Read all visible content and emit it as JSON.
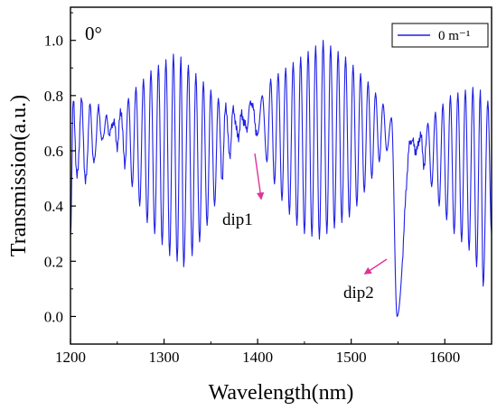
{
  "chart_data": {
    "type": "line",
    "title": "",
    "panel_label": "0°",
    "xlabel": "Wavelength(nm)",
    "ylabel": "Transmission(a.u.)",
    "xlim": [
      1200,
      1650
    ],
    "ylim": [
      -0.1,
      1.12
    ],
    "xticks": [
      1200,
      1300,
      1400,
      1500,
      1600
    ],
    "yticks": [
      0.0,
      0.2,
      0.4,
      0.6,
      0.8,
      1.0
    ],
    "ytick_labels": [
      "0.0",
      "0.2",
      "0.4",
      "0.6",
      "0.8",
      "1.0"
    ],
    "grid": false,
    "legend_position": "top-right",
    "series": [
      {
        "name": "0 m⁻¹",
        "color": "#1f1fe6",
        "peaks": [
          [
            1203,
            0.78
          ],
          [
            1212,
            0.78
          ],
          [
            1221,
            0.76
          ],
          [
            1230,
            0.75
          ],
          [
            1238,
            0.72
          ],
          [
            1246,
            0.71
          ],
          [
            1254,
            0.75
          ],
          [
            1262,
            0.79
          ],
          [
            1270,
            0.83
          ],
          [
            1278,
            0.86
          ],
          [
            1286,
            0.89
          ],
          [
            1294,
            0.91
          ],
          [
            1302,
            0.93
          ],
          [
            1310,
            0.95
          ],
          [
            1318,
            0.94
          ],
          [
            1326,
            0.91
          ],
          [
            1334,
            0.88
          ],
          [
            1342,
            0.85
          ],
          [
            1350,
            0.82
          ],
          [
            1358,
            0.79
          ],
          [
            1366,
            0.77
          ],
          [
            1374,
            0.75
          ],
          [
            1383,
            0.73
          ],
          [
            1393,
            0.78
          ],
          [
            1405,
            0.8
          ],
          [
            1414,
            0.86
          ],
          [
            1422,
            0.88
          ],
          [
            1430,
            0.9
          ],
          [
            1438,
            0.92
          ],
          [
            1446,
            0.94
          ],
          [
            1454,
            0.96
          ],
          [
            1462,
            0.98
          ],
          [
            1470,
            1.0
          ],
          [
            1478,
            0.98
          ],
          [
            1486,
            0.96
          ],
          [
            1494,
            0.94
          ],
          [
            1502,
            0.91
          ],
          [
            1510,
            0.88
          ],
          [
            1518,
            0.85
          ],
          [
            1526,
            0.81
          ],
          [
            1534,
            0.77
          ],
          [
            1543,
            0.72
          ],
          [
            1564,
            0.64
          ],
          [
            1574,
            0.66
          ],
          [
            1582,
            0.7
          ],
          [
            1590,
            0.74
          ],
          [
            1598,
            0.77
          ],
          [
            1606,
            0.8
          ],
          [
            1614,
            0.81
          ],
          [
            1622,
            0.82
          ],
          [
            1630,
            0.83
          ],
          [
            1638,
            0.82
          ],
          [
            1646,
            0.78
          ]
        ],
        "dips": [
          [
            1200,
            0.3
          ],
          [
            1207,
            0.5
          ],
          [
            1216,
            0.48
          ],
          [
            1225,
            0.55
          ],
          [
            1234,
            0.63
          ],
          [
            1242,
            0.66
          ],
          [
            1250,
            0.62
          ],
          [
            1258,
            0.55
          ],
          [
            1266,
            0.47
          ],
          [
            1274,
            0.4
          ],
          [
            1282,
            0.34
          ],
          [
            1290,
            0.3
          ],
          [
            1298,
            0.26
          ],
          [
            1306,
            0.22
          ],
          [
            1314,
            0.2
          ],
          [
            1321,
            0.18
          ],
          [
            1330,
            0.22
          ],
          [
            1338,
            0.27
          ],
          [
            1346,
            0.33
          ],
          [
            1354,
            0.4
          ],
          [
            1362,
            0.5
          ],
          [
            1370,
            0.58
          ],
          [
            1379,
            0.65
          ],
          [
            1388,
            0.68
          ],
          [
            1400,
            0.66
          ],
          [
            1410,
            0.56
          ],
          [
            1418,
            0.48
          ],
          [
            1426,
            0.42
          ],
          [
            1434,
            0.37
          ],
          [
            1442,
            0.33
          ],
          [
            1450,
            0.3
          ],
          [
            1458,
            0.29
          ],
          [
            1466,
            0.28
          ],
          [
            1474,
            0.3
          ],
          [
            1482,
            0.32
          ],
          [
            1490,
            0.34
          ],
          [
            1498,
            0.36
          ],
          [
            1506,
            0.4
          ],
          [
            1514,
            0.45
          ],
          [
            1522,
            0.5
          ],
          [
            1530,
            0.56
          ],
          [
            1538,
            0.6
          ],
          [
            1549,
            0.0
          ],
          [
            1570,
            0.6
          ],
          [
            1578,
            0.55
          ],
          [
            1586,
            0.47
          ],
          [
            1594,
            0.4
          ],
          [
            1602,
            0.35
          ],
          [
            1610,
            0.3
          ],
          [
            1618,
            0.27
          ],
          [
            1626,
            0.24
          ],
          [
            1634,
            0.18
          ],
          [
            1641,
            0.11
          ],
          [
            1650,
            0.3
          ]
        ]
      }
    ],
    "annotations": [
      {
        "text": "dip1",
        "color": "#e0339a",
        "x": 1400,
        "y": 0.37
      },
      {
        "text": "dip2",
        "color": "#e0339a",
        "x": 1538,
        "y": 0.08
      }
    ]
  }
}
